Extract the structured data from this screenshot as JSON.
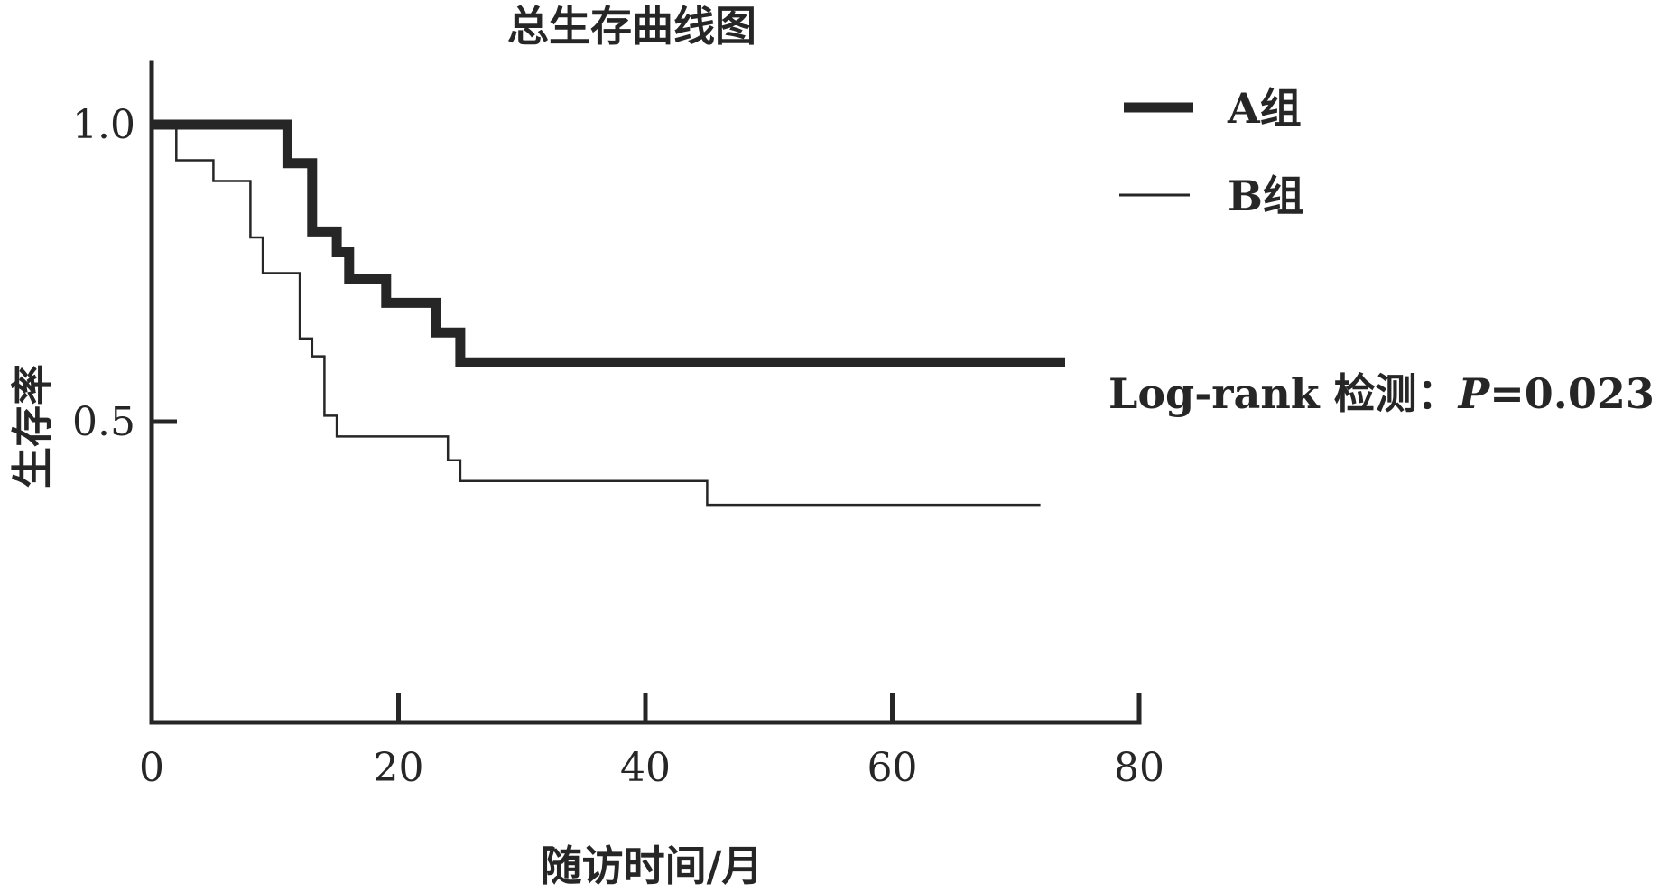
{
  "chart_data": {
    "type": "line",
    "title": "总生存曲线图",
    "xlabel": "随访时间/月",
    "ylabel": "生存率",
    "xlim": [
      0,
      80
    ],
    "ylim": [
      0,
      1.1
    ],
    "x_ticks": [
      0,
      20,
      40,
      60,
      80
    ],
    "x_tick_labels": [
      "0",
      "20",
      "40",
      "60",
      "80"
    ],
    "y_ticks": [
      0.5,
      1.0
    ],
    "y_tick_labels": [
      "0.5",
      "1.0"
    ],
    "step": true,
    "legend_position": "top-right",
    "series": [
      {
        "name": "A组",
        "color": "#262626",
        "weight": "thick",
        "x": [
          0,
          11,
          13,
          15,
          16,
          19,
          23,
          25,
          74
        ],
        "y": [
          1.0,
          0.935,
          0.82,
          0.785,
          0.74,
          0.7,
          0.65,
          0.6,
          0.6
        ]
      },
      {
        "name": "B组",
        "color": "#262626",
        "weight": "thin",
        "x": [
          0,
          2,
          5,
          8,
          9,
          12,
          13,
          14,
          15,
          24,
          25,
          45,
          72
        ],
        "y": [
          1.0,
          0.94,
          0.905,
          0.81,
          0.75,
          0.64,
          0.61,
          0.51,
          0.475,
          0.435,
          0.4,
          0.36,
          0.36
        ]
      }
    ],
    "annotation": {
      "prefix": "Log-rank 检测：",
      "p_symbol": "P",
      "p_value": "=0.023"
    }
  }
}
